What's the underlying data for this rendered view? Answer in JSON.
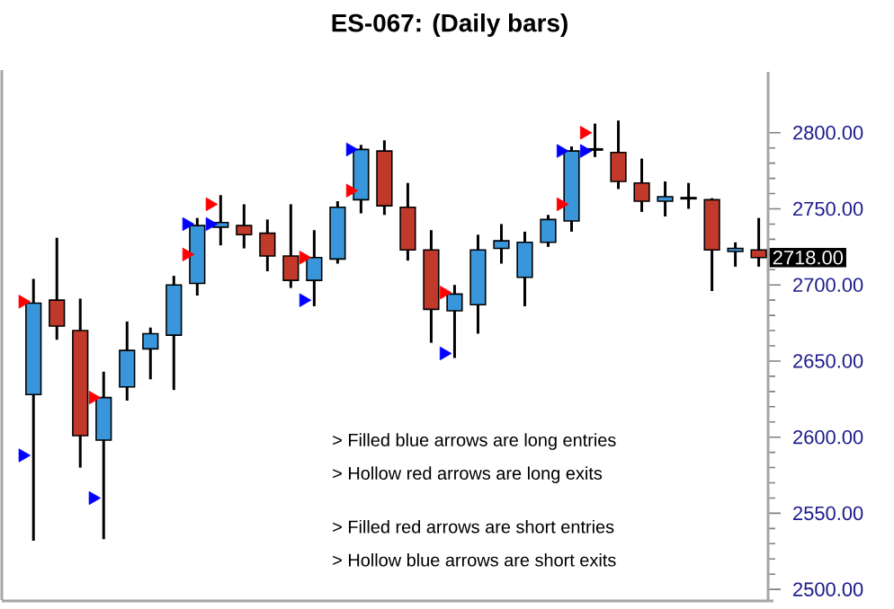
{
  "chart_data": {
    "type": "candlestick",
    "title": "ES-067: (Daily bars)",
    "categories": [
      null,
      null,
      null,
      null,
      null,
      null,
      null,
      null,
      null,
      null,
      null,
      null,
      null,
      null,
      null,
      null,
      null,
      null,
      null,
      null,
      null,
      null,
      null,
      null,
      null,
      null,
      null,
      null,
      null,
      null,
      null,
      null
    ],
    "ohlc": [
      [
        2628,
        2704,
        2532,
        2688
      ],
      [
        2690,
        2731,
        2664,
        2673
      ],
      [
        2670,
        2691,
        2580,
        2601
      ],
      [
        2598,
        2643,
        2533,
        2626
      ],
      [
        2633,
        2676,
        2624,
        2657
      ],
      [
        2658,
        2672,
        2638,
        2668
      ],
      [
        2667,
        2706,
        2631,
        2700
      ],
      [
        2701,
        2744,
        2693,
        2739
      ],
      [
        2738,
        2759,
        2726,
        2741
      ],
      [
        2739,
        2753,
        2724,
        2733
      ],
      [
        2734,
        2743,
        2709,
        2719
      ],
      [
        2719,
        2753,
        2698,
        2703
      ],
      [
        2703,
        2736,
        2686,
        2718
      ],
      [
        2717,
        2755,
        2714,
        2751
      ],
      [
        2756,
        2792,
        2747,
        2789
      ],
      [
        2788,
        2795,
        2746,
        2752
      ],
      [
        2751,
        2767,
        2716,
        2723
      ],
      [
        2723,
        2736,
        2662,
        2684
      ],
      [
        2683,
        2700,
        2652,
        2694
      ],
      [
        2687,
        2733,
        2668,
        2723
      ],
      [
        2724,
        2740,
        2714,
        2729
      ],
      [
        2705,
        2735,
        2686,
        2728
      ],
      [
        2728,
        2746,
        2725,
        2743
      ],
      [
        2742,
        2791,
        2735,
        2788
      ],
      [
        2789,
        2806,
        2784,
        2789
      ],
      [
        2787,
        2808,
        2763,
        2768
      ],
      [
        2767,
        2783,
        2748,
        2755
      ],
      [
        2755,
        2768,
        2745,
        2758
      ],
      [
        2757,
        2767,
        2750,
        2757
      ],
      [
        2756,
        2757,
        2696,
        2723
      ],
      [
        2722,
        2728,
        2712,
        2724
      ],
      [
        2723,
        2744,
        2712,
        2718
      ]
    ],
    "colors": [
      "#3a96db",
      "#c0392b",
      "#c0392b",
      "#3a96db",
      "#3a96db",
      "#3a96db",
      "#3a96db",
      "#3a96db",
      "#3a96db",
      "#c0392b",
      "#c0392b",
      "#c0392b",
      "#3a96db",
      "#3a96db",
      "#3a96db",
      "#c0392b",
      "#c0392b",
      "#c0392b",
      "#3a96db",
      "#3a96db",
      "#3a96db",
      "#3a96db",
      "#3a96db",
      "#3a96db",
      "#000000",
      "#c0392b",
      "#c0392b",
      "#3a96db",
      "#000000",
      "#c0392b",
      "#3a96db",
      "#c0392b"
    ],
    "series": [
      {
        "type": "scatter",
        "color": "#0000ff",
        "values": [
          2588,
          null,
          null,
          2560,
          null,
          null,
          null,
          null,
          null,
          null,
          null,
          null,
          2690,
          null,
          null,
          null,
          null,
          null,
          2655,
          null,
          null,
          null,
          null,
          null,
          null,
          null,
          null,
          null,
          null,
          null,
          null,
          null
        ]
      },
      {
        "type": "scatter",
        "color": "#ff0000",
        "values": [
          2689,
          null,
          null,
          2626,
          null,
          null,
          null,
          null,
          null,
          null,
          null,
          null,
          2718,
          null,
          null,
          null,
          null,
          null,
          2695,
          null,
          null,
          null,
          null,
          null,
          null,
          null,
          null,
          null,
          null,
          null,
          null,
          null
        ]
      },
      {
        "type": "scatter",
        "color": "#ff0000",
        "values": [
          null,
          null,
          null,
          null,
          null,
          null,
          null,
          2720,
          2753,
          null,
          null,
          null,
          null,
          null,
          2762,
          null,
          null,
          null,
          null,
          null,
          null,
          null,
          null,
          2753,
          2800,
          null,
          null,
          null,
          null,
          null,
          null,
          null
        ]
      },
      {
        "type": "scatter",
        "color": "#0000ff",
        "values": [
          null,
          null,
          null,
          null,
          null,
          null,
          null,
          2740,
          2740,
          null,
          null,
          null,
          null,
          null,
          2789,
          null,
          null,
          null,
          null,
          null,
          null,
          null,
          null,
          2788,
          2788,
          null,
          null,
          null,
          null,
          null,
          null,
          null
        ]
      }
    ],
    "marker": "triangle",
    "ylim": [
      2493,
      2840
    ],
    "yticks": [
      {
        "value": 2500,
        "label": "2500.00"
      },
      {
        "value": 2550,
        "label": "2550.00"
      },
      {
        "value": 2600,
        "label": "2600.00"
      },
      {
        "value": 2650,
        "label": "2650.00"
      },
      {
        "value": 2700,
        "label": "2700.00"
      },
      {
        "value": 2750,
        "label": "2750.00"
      },
      {
        "value": 2800,
        "label": "2800.00"
      }
    ],
    "annotations": [
      "2718.00",
      "> Filled blue arrows are long entries",
      "> Hollow red arrows are long exits",
      "> Filled red arrows are short entries",
      "> Hollow blue arrows are short exits"
    ]
  }
}
